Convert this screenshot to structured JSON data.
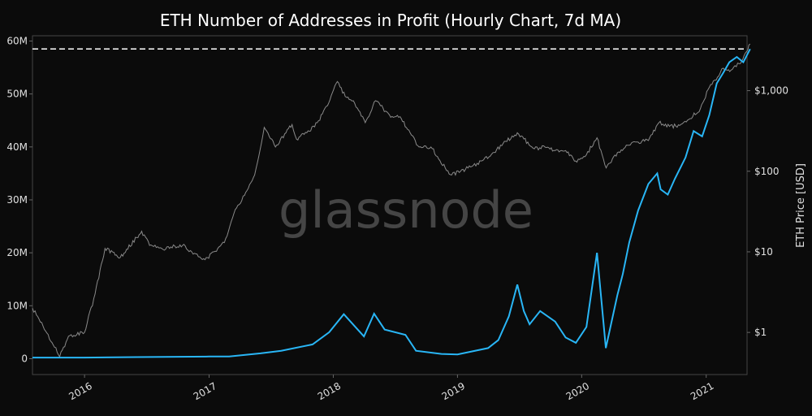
{
  "chart_data": {
    "type": "line",
    "title": "ETH Number of Addresses in Profit (Hourly Chart, 7d MA)",
    "watermark": "glassnode",
    "x_ticks": [
      "2016",
      "2017",
      "2018",
      "2019",
      "2020",
      "2021"
    ],
    "xlim": [
      "2015-08",
      "2021-05"
    ],
    "y_left": {
      "ticks": [
        "0",
        "10M",
        "20M",
        "30M",
        "40M",
        "50M",
        "60M"
      ],
      "tick_values": [
        0,
        10,
        20,
        30,
        40,
        50,
        60
      ],
      "unit": "M",
      "ylim": [
        -3,
        61
      ],
      "ylabel": ""
    },
    "y_right": {
      "ticks": [
        "$1",
        "$10",
        "$100",
        "$1,000"
      ],
      "tick_values": [
        1,
        10,
        100,
        1000
      ],
      "scale": "log",
      "ylim": [
        0.3,
        4800
      ],
      "ylabel": "ETH Price [USD]"
    },
    "reference_line": {
      "y": 58.5,
      "style": "dashed",
      "color": "#ffffff"
    },
    "grid": false,
    "series": [
      {
        "axis": "left",
        "color": "#29b6f6",
        "x": [
          "2015-08-01",
          "2016-01-01",
          "2016-06-01",
          "2017-01-01",
          "2017-03-01",
          "2017-06-01",
          "2017-08-01",
          "2017-11-01",
          "2017-12-20",
          "2018-02-01",
          "2018-04-01",
          "2018-05-01",
          "2018-06-01",
          "2018-08-01",
          "2018-09-01",
          "2018-11-15",
          "2019-01-01",
          "2019-04-01",
          "2019-05-01",
          "2019-06-01",
          "2019-06-26",
          "2019-07-15",
          "2019-08-01",
          "2019-09-01",
          "2019-10-15",
          "2019-11-15",
          "2019-12-15",
          "2020-01-15",
          "2020-02-15",
          "2020-03-12",
          "2020-04-15",
          "2020-05-01",
          "2020-05-20",
          "2020-06-15",
          "2020-07-15",
          "2020-08-10",
          "2020-08-20",
          "2020-09-10",
          "2020-10-01",
          "2020-11-01",
          "2020-11-25",
          "2020-12-20",
          "2021-01-10",
          "2021-02-01",
          "2021-02-20",
          "2021-03-10",
          "2021-04-01",
          "2021-04-20",
          "2021-05-10"
        ],
        "y": [
          0.2,
          0.2,
          0.3,
          0.4,
          0.4,
          1.0,
          1.5,
          2.7,
          5.0,
          8.4,
          4.2,
          8.5,
          5.5,
          4.5,
          1.5,
          0.9,
          0.8,
          2.0,
          3.5,
          8.0,
          14.0,
          9.0,
          6.5,
          9.0,
          7.0,
          4.0,
          3.0,
          6.0,
          20.0,
          2.0,
          12.0,
          16.0,
          22.0,
          28.0,
          33.0,
          35.0,
          32.0,
          31.0,
          34.0,
          38.0,
          43.0,
          42.0,
          46.0,
          52.0,
          54.0,
          56.0,
          57.0,
          56.0,
          58.5
        ]
      },
      {
        "axis": "right",
        "color": "#8a8a8a",
        "x": [
          "2015-08-01",
          "2015-09-01",
          "2015-10-20",
          "2015-11-15",
          "2016-01-01",
          "2016-02-01",
          "2016-03-01",
          "2016-04-15",
          "2016-06-17",
          "2016-07-10",
          "2016-08-15",
          "2016-10-15",
          "2016-12-20",
          "2017-01-15",
          "2017-02-15",
          "2017-03-15",
          "2017-04-15",
          "2017-05-15",
          "2017-06-12",
          "2017-07-15",
          "2017-08-15",
          "2017-09-02",
          "2017-09-15",
          "2017-10-15",
          "2017-11-15",
          "2017-12-15",
          "2018-01-13",
          "2018-02-05",
          "2018-03-01",
          "2018-04-05",
          "2018-05-05",
          "2018-06-15",
          "2018-07-20",
          "2018-08-15",
          "2018-09-10",
          "2018-10-15",
          "2018-11-26",
          "2018-12-15",
          "2019-02-01",
          "2019-03-15",
          "2019-04-15",
          "2019-05-15",
          "2019-06-26",
          "2019-08-15",
          "2019-09-15",
          "2019-10-15",
          "2019-11-15",
          "2019-12-18",
          "2020-01-15",
          "2020-02-15",
          "2020-03-13",
          "2020-04-15",
          "2020-05-15",
          "2020-06-15",
          "2020-07-15",
          "2020-08-15",
          "2020-09-15",
          "2020-10-15",
          "2020-11-15",
          "2020-12-15",
          "2021-01-10",
          "2021-01-30",
          "2021-02-20",
          "2021-03-15",
          "2021-04-15",
          "2021-05-10"
        ],
        "y": [
          2.0,
          1.2,
          0.5,
          0.9,
          1.0,
          3.0,
          11.0,
          8.5,
          18.0,
          12.0,
          11.0,
          12.0,
          8.0,
          10.0,
          13.0,
          30.0,
          50.0,
          90.0,
          350.0,
          200.0,
          300.0,
          380.0,
          250.0,
          300.0,
          400.0,
          650.0,
          1300.0,
          850.0,
          750.0,
          400.0,
          750.0,
          500.0,
          450.0,
          300.0,
          200.0,
          200.0,
          110.0,
          90.0,
          110.0,
          135.0,
          170.0,
          220.0,
          300.0,
          190.0,
          200.0,
          180.0,
          180.0,
          130.0,
          160.0,
          260.0,
          110.0,
          170.0,
          210.0,
          230.0,
          240.0,
          400.0,
          360.0,
          370.0,
          450.0,
          600.0,
          1100.0,
          1350.0,
          1900.0,
          1800.0,
          2300.0,
          3800.0
        ]
      }
    ]
  }
}
